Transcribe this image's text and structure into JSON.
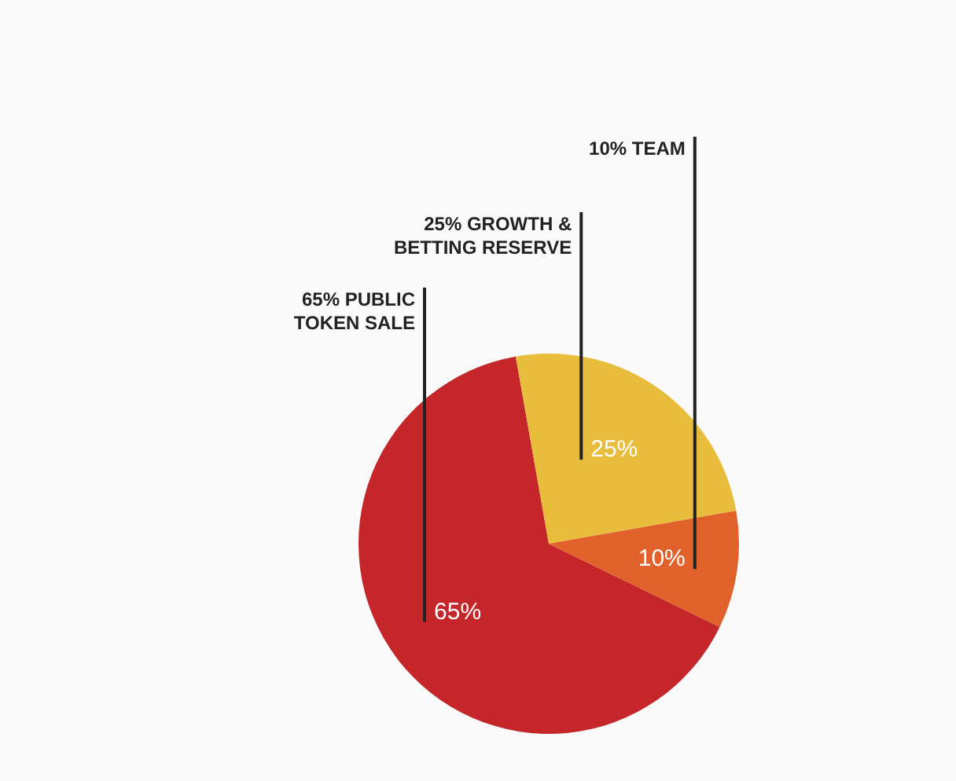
{
  "chart_data": {
    "type": "pie",
    "categories": [
      "65% PUBLIC TOKEN SALE",
      "25% GROWTH & BETTING RESERVE",
      "10% TEAM"
    ],
    "values": [
      65,
      25,
      10
    ],
    "colors": [
      "#c4262a",
      "#e8bd3c",
      "#e0622a"
    ],
    "value_labels": [
      "65%",
      "25%",
      "10%"
    ],
    "legend": false
  }
}
